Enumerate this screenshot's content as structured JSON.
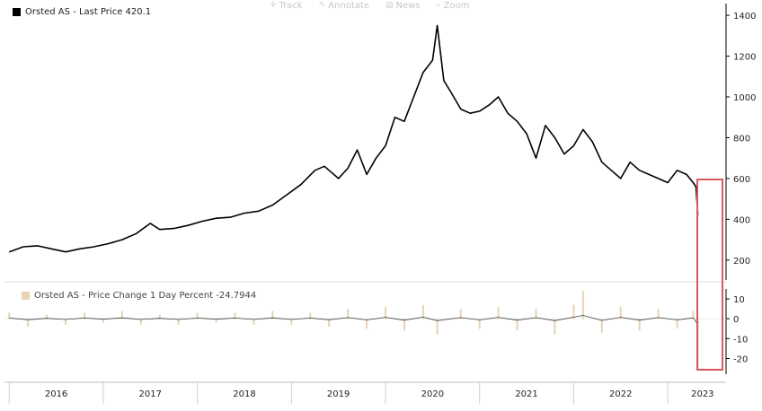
{
  "toolbar": {
    "items": [
      {
        "label": "Track",
        "icon": "crosshair-icon"
      },
      {
        "label": "Annotate",
        "icon": "pencil-icon"
      },
      {
        "label": "News",
        "icon": "news-icon"
      },
      {
        "label": "Zoom",
        "icon": "zoom-icon"
      }
    ]
  },
  "colors": {
    "price_line": "#000000",
    "change_bars": "#e6d4b2",
    "change_line": "#3a3a3a",
    "highlight_box": "#d9595f",
    "axis": "#000000",
    "grid": "#e6e6e6"
  },
  "chart_data": [
    {
      "type": "line",
      "legend_label": "Orsted AS - Last Price 420.1",
      "series": [
        {
          "name": "Orsted AS - Last Price",
          "x": [
            2016.0,
            2016.15,
            2016.3,
            2016.45,
            2016.6,
            2016.75,
            2016.9,
            2017.05,
            2017.2,
            2017.35,
            2017.5,
            2017.6,
            2017.75,
            2017.9,
            2018.05,
            2018.2,
            2018.35,
            2018.5,
            2018.65,
            2018.8,
            2018.95,
            2019.1,
            2019.25,
            2019.35,
            2019.5,
            2019.6,
            2019.7,
            2019.8,
            2019.9,
            2020.0,
            2020.1,
            2020.2,
            2020.3,
            2020.4,
            2020.5,
            2020.55,
            2020.62,
            2020.7,
            2020.8,
            2020.9,
            2021.0,
            2021.1,
            2021.2,
            2021.3,
            2021.4,
            2021.5,
            2021.6,
            2021.7,
            2021.8,
            2021.9,
            2022.0,
            2022.1,
            2022.2,
            2022.3,
            2022.4,
            2022.5,
            2022.6,
            2022.7,
            2022.8,
            2022.9,
            2023.0,
            2023.1,
            2023.2,
            2023.27,
            2023.3,
            2023.32
          ],
          "values": [
            240,
            265,
            270,
            255,
            240,
            255,
            265,
            280,
            300,
            330,
            380,
            350,
            355,
            370,
            390,
            405,
            410,
            430,
            440,
            470,
            520,
            570,
            640,
            660,
            600,
            650,
            740,
            620,
            700,
            760,
            900,
            880,
            1000,
            1120,
            1180,
            1350,
            1080,
            1020,
            940,
            920,
            930,
            960,
            1000,
            920,
            880,
            820,
            700,
            860,
            800,
            720,
            760,
            840,
            780,
            680,
            640,
            600,
            680,
            640,
            620,
            600,
            580,
            640,
            620,
            580,
            560,
            420
          ],
          "color": "#000000"
        }
      ],
      "x_ticks": [
        "2016",
        "2017",
        "2018",
        "2019",
        "2020",
        "2021",
        "2022",
        "2023"
      ],
      "y_ticks": [
        200,
        400,
        600,
        800,
        1000,
        1200,
        1400
      ],
      "xlim": [
        2015.95,
        2023.62
      ],
      "ylim": [
        120,
        1440
      ],
      "y_axis_side": "right"
    },
    {
      "type": "bar",
      "legend_label": "Orsted AS - Price Change 1 Day Percent -24.7944",
      "series": [
        {
          "name": "Orsted AS - Price Change 1 Day Percent",
          "x": [
            2016.0,
            2016.2,
            2016.4,
            2016.6,
            2016.8,
            2017.0,
            2017.2,
            2017.4,
            2017.6,
            2017.8,
            2018.0,
            2018.2,
            2018.4,
            2018.6,
            2018.8,
            2019.0,
            2019.2,
            2019.4,
            2019.6,
            2019.8,
            2020.0,
            2020.2,
            2020.4,
            2020.55,
            2020.8,
            2021.0,
            2021.2,
            2021.4,
            2021.6,
            2021.8,
            2022.0,
            2022.1,
            2022.3,
            2022.5,
            2022.7,
            2022.9,
            2023.1,
            2023.27,
            2023.32
          ],
          "values": [
            3,
            -4,
            2,
            -3,
            3,
            -2,
            4,
            -3,
            2,
            -3,
            3,
            -2,
            3,
            -3,
            4,
            -3,
            3,
            -4,
            5,
            -5,
            6,
            -6,
            7,
            -8,
            5,
            -5,
            6,
            -6,
            5,
            -8,
            7,
            14,
            -7,
            6,
            -6,
            5,
            -5,
            4,
            -24.8
          ],
          "color": "#e6d4b2"
        }
      ],
      "y_ticks": [
        10,
        0,
        -10,
        -20
      ],
      "tick_labels": [
        "10",
        "0",
        "-10",
        "-20"
      ],
      "ylim": [
        -27,
        15
      ],
      "y_axis_side": "right"
    }
  ]
}
